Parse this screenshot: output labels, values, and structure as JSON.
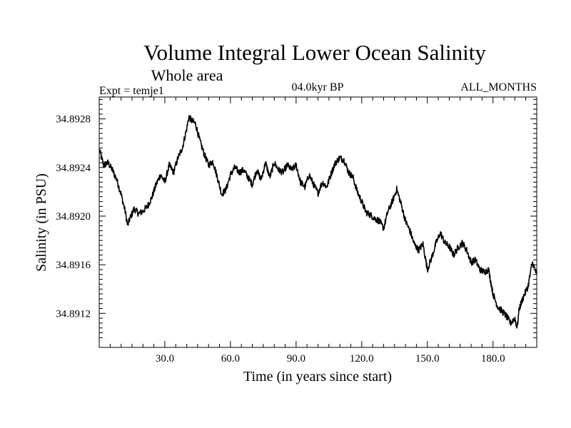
{
  "chart_data": {
    "type": "line",
    "title": "Volume Integral Lower Ocean Salinity",
    "subtitle": "Whole area",
    "experiment_label": "Expt = temje1",
    "period_label": "04.0kyr BP",
    "months_label": "ALL_MONTHS",
    "xlabel": "Time (in years since start)",
    "ylabel": "Salinity (in PSU)",
    "xlim": [
      0,
      200
    ],
    "ylim": [
      34.89092,
      34.89298
    ],
    "x_ticks": [
      30,
      60,
      90,
      120,
      150,
      180
    ],
    "x_tick_labels": [
      "30.0",
      "60.0",
      "90.0",
      "120.0",
      "150.0",
      "180.0"
    ],
    "y_ticks": [
      34.8912,
      34.8916,
      34.892,
      34.8924,
      34.8928
    ],
    "y_tick_labels": [
      "34.8912",
      "34.8916",
      "34.8920",
      "34.8924",
      "34.8928"
    ],
    "series": [
      {
        "name": "Salinity",
        "x": [
          0,
          2,
          4,
          6,
          8,
          10,
          12,
          13,
          14,
          16,
          18,
          20,
          22,
          24,
          26,
          28,
          30,
          32,
          34,
          36,
          38,
          40,
          41,
          42,
          44,
          46,
          48,
          50,
          52,
          54,
          56,
          58,
          60,
          62,
          64,
          66,
          68,
          70,
          72,
          74,
          76,
          78,
          80,
          82,
          84,
          86,
          88,
          90,
          92,
          94,
          96,
          98,
          100,
          102,
          104,
          106,
          108,
          110,
          112,
          114,
          116,
          118,
          120,
          122,
          124,
          126,
          128,
          130,
          132,
          134,
          136,
          138,
          140,
          142,
          144,
          146,
          148,
          150,
          152,
          154,
          156,
          158,
          160,
          162,
          164,
          166,
          168,
          170,
          172,
          174,
          176,
          178,
          180,
          182,
          184,
          186,
          188,
          190,
          191,
          192,
          194,
          196,
          198,
          200
        ],
        "values": [
          34.89255,
          34.89242,
          34.89244,
          34.89238,
          34.8923,
          34.89218,
          34.89203,
          34.89192,
          34.89198,
          34.89206,
          34.89202,
          34.89204,
          34.89208,
          34.89215,
          34.89226,
          34.89234,
          34.89228,
          34.89242,
          34.89236,
          34.89248,
          34.89256,
          34.89272,
          34.89282,
          34.89279,
          34.89276,
          34.89262,
          34.89251,
          34.89242,
          34.89245,
          34.89232,
          34.89218,
          34.89222,
          34.89234,
          34.8924,
          34.89236,
          34.89238,
          34.89232,
          34.89226,
          34.89238,
          34.8923,
          34.89244,
          34.89232,
          34.89244,
          34.89238,
          34.89236,
          34.89242,
          34.89238,
          34.89242,
          34.89228,
          34.89224,
          34.89234,
          34.89226,
          34.89219,
          34.89228,
          34.89224,
          34.89235,
          34.89244,
          34.89248,
          34.89246,
          34.89236,
          34.89232,
          34.8922,
          34.89212,
          34.89203,
          34.89201,
          34.89198,
          34.89196,
          34.8919,
          34.89204,
          34.89212,
          34.89222,
          34.8921,
          34.89196,
          34.89188,
          34.89177,
          34.89172,
          34.89177,
          34.89156,
          34.89166,
          34.89178,
          34.89186,
          34.89178,
          34.89175,
          34.89168,
          34.89174,
          34.89178,
          34.89172,
          34.89162,
          34.89164,
          34.89156,
          34.89154,
          34.89156,
          34.89136,
          34.89126,
          34.89122,
          34.89118,
          34.89112,
          34.89116,
          34.89108,
          34.89124,
          34.89134,
          34.89142,
          34.89162,
          34.89152
        ]
      }
    ]
  }
}
